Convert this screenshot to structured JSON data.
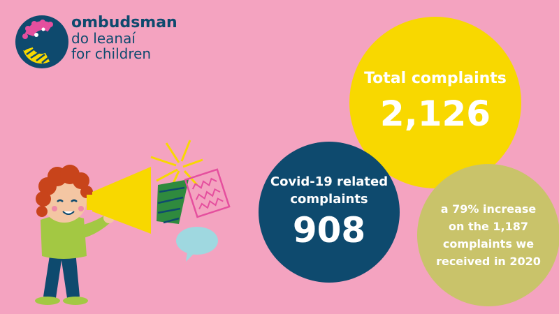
{
  "logo": {
    "line1": "ombudsman",
    "line2": "do leanaí",
    "line3": "for children",
    "colors": {
      "navy": "#0e4a6e",
      "pink": "#e54f9e",
      "yellow": "#f8d800"
    },
    "icon": "ombudsman-logo-ring"
  },
  "stats": {
    "total": {
      "label": "Total complaints",
      "value": "2,126",
      "color": "#f8d800"
    },
    "covid": {
      "label_line1": "Covid-19 related",
      "label_line2": "complaints",
      "value": "908",
      "color": "#0e4a6e"
    },
    "increase": {
      "line1": "a 79% increase",
      "line2": "on the 1,187",
      "line3": "complaints we",
      "line4": "received in 2020",
      "color": "#c9c36a"
    }
  },
  "background_color": "#f4a3c0",
  "illustration": {
    "icon": "child-with-megaphone-illustration"
  }
}
